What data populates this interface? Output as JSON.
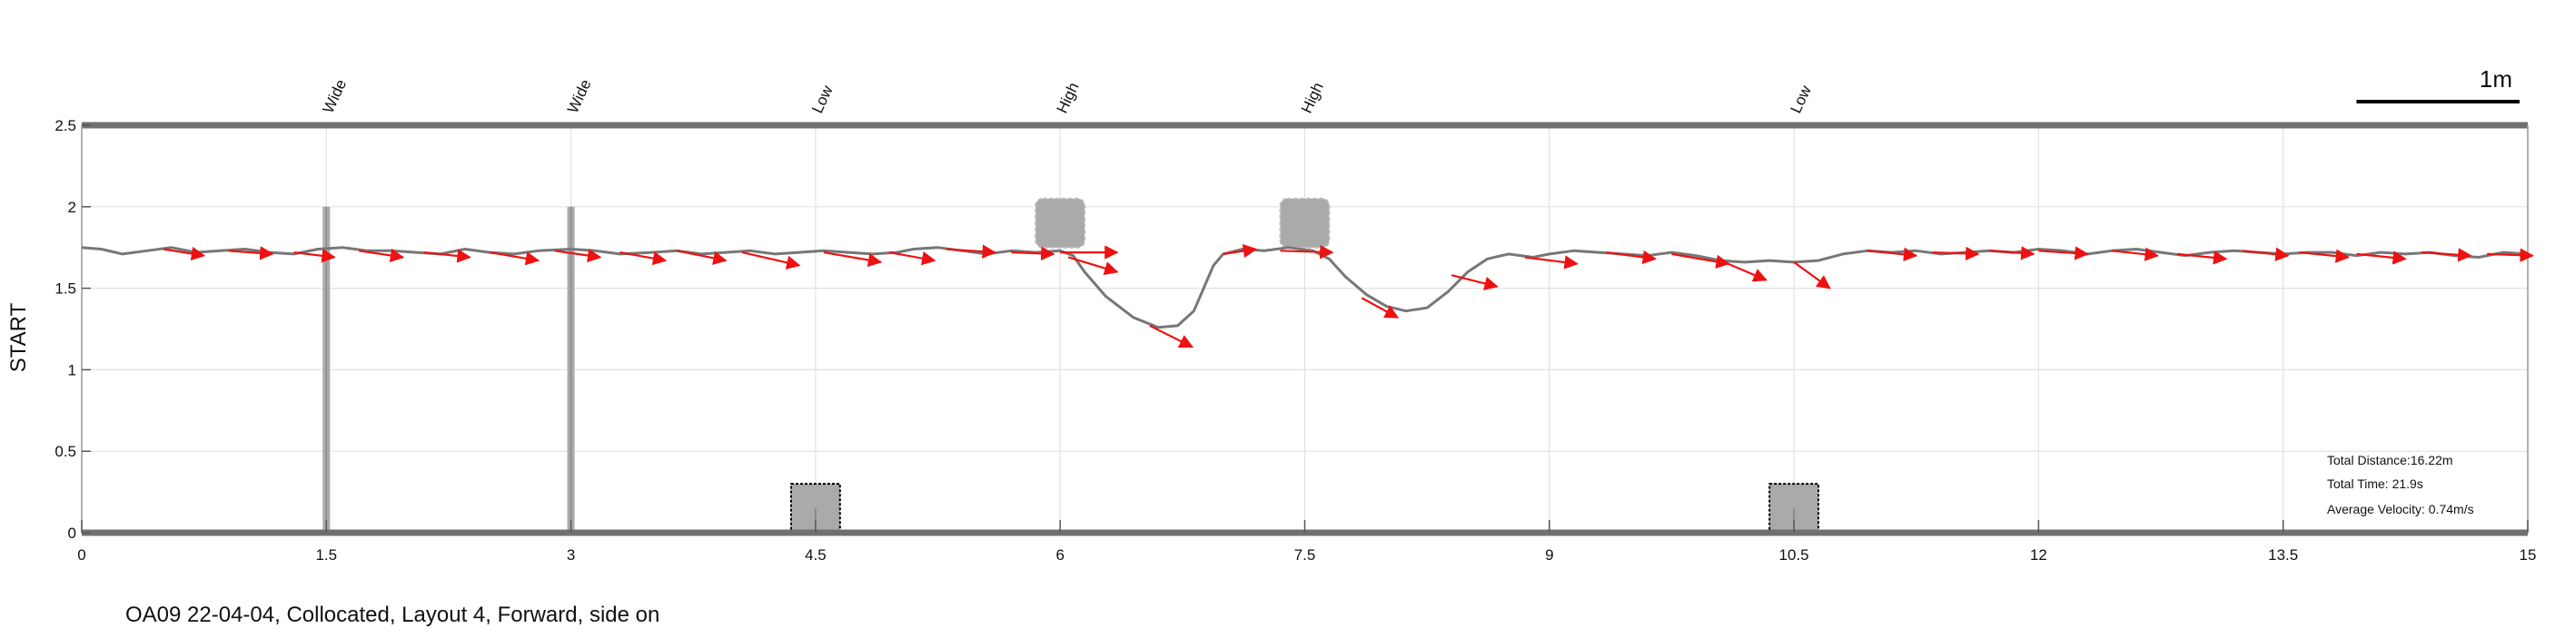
{
  "chart_data": {
    "type": "line",
    "ylabel": "START",
    "xlim": [
      0,
      15
    ],
    "ylim": [
      0,
      2.5
    ],
    "x_ticks": [
      "0",
      "1.5",
      "3",
      "4.5",
      "6",
      "7.5",
      "9",
      "10.5",
      "12",
      "13.5",
      "15"
    ],
    "y_ticks": [
      "0",
      "0.5",
      "1",
      "1.5",
      "2",
      "2.5"
    ],
    "grid": true,
    "scale_bar": {
      "label": "1m",
      "length": 1
    },
    "obstacles": [
      {
        "label": "Wide",
        "x": 1.5,
        "kind": "post",
        "y0": 0,
        "y1": 2.0
      },
      {
        "label": "Wide",
        "x": 3.0,
        "kind": "post",
        "y0": 0,
        "y1": 2.0
      },
      {
        "label": "Low",
        "x": 4.5,
        "kind": "box",
        "y0": 0,
        "y1": 0.3,
        "width": 0.3
      },
      {
        "label": "High",
        "x": 6.0,
        "kind": "cloud",
        "y0": 1.75,
        "y1": 2.05,
        "width": 0.3
      },
      {
        "label": "High",
        "x": 7.5,
        "kind": "cloud",
        "y0": 1.75,
        "y1": 2.05,
        "width": 0.3
      },
      {
        "label": "Low",
        "x": 10.5,
        "kind": "box",
        "y0": 0,
        "y1": 0.3,
        "width": 0.3
      }
    ],
    "path": [
      [
        0.0,
        1.75
      ],
      [
        0.12,
        1.74
      ],
      [
        0.25,
        1.71
      ],
      [
        0.4,
        1.73
      ],
      [
        0.55,
        1.75
      ],
      [
        0.7,
        1.72
      ],
      [
        0.85,
        1.73
      ],
      [
        1.0,
        1.74
      ],
      [
        1.15,
        1.72
      ],
      [
        1.3,
        1.71
      ],
      [
        1.45,
        1.74
      ],
      [
        1.6,
        1.75
      ],
      [
        1.75,
        1.73
      ],
      [
        1.9,
        1.73
      ],
      [
        2.05,
        1.72
      ],
      [
        2.2,
        1.71
      ],
      [
        2.35,
        1.74
      ],
      [
        2.5,
        1.72
      ],
      [
        2.65,
        1.71
      ],
      [
        2.8,
        1.73
      ],
      [
        3.0,
        1.74
      ],
      [
        3.15,
        1.73
      ],
      [
        3.3,
        1.71
      ],
      [
        3.5,
        1.72
      ],
      [
        3.65,
        1.73
      ],
      [
        3.8,
        1.71
      ],
      [
        3.95,
        1.72
      ],
      [
        4.1,
        1.73
      ],
      [
        4.25,
        1.71
      ],
      [
        4.4,
        1.72
      ],
      [
        4.55,
        1.73
      ],
      [
        4.7,
        1.72
      ],
      [
        4.85,
        1.71
      ],
      [
        5.0,
        1.72
      ],
      [
        5.1,
        1.74
      ],
      [
        5.25,
        1.75
      ],
      [
        5.4,
        1.73
      ],
      [
        5.55,
        1.71
      ],
      [
        5.7,
        1.73
      ],
      [
        5.85,
        1.72
      ],
      [
        6.0,
        1.73
      ],
      [
        6.08,
        1.7
      ],
      [
        6.15,
        1.6
      ],
      [
        6.28,
        1.45
      ],
      [
        6.45,
        1.32
      ],
      [
        6.6,
        1.26
      ],
      [
        6.72,
        1.27
      ],
      [
        6.82,
        1.36
      ],
      [
        6.88,
        1.5
      ],
      [
        6.94,
        1.64
      ],
      [
        7.0,
        1.71
      ],
      [
        7.12,
        1.74
      ],
      [
        7.25,
        1.73
      ],
      [
        7.4,
        1.75
      ],
      [
        7.55,
        1.73
      ],
      [
        7.65,
        1.68
      ],
      [
        7.75,
        1.57
      ],
      [
        7.88,
        1.46
      ],
      [
        8.0,
        1.39
      ],
      [
        8.12,
        1.36
      ],
      [
        8.25,
        1.38
      ],
      [
        8.38,
        1.48
      ],
      [
        8.5,
        1.6
      ],
      [
        8.62,
        1.68
      ],
      [
        8.75,
        1.71
      ],
      [
        8.9,
        1.69
      ],
      [
        9.0,
        1.71
      ],
      [
        9.15,
        1.73
      ],
      [
        9.3,
        1.72
      ],
      [
        9.45,
        1.71
      ],
      [
        9.6,
        1.7
      ],
      [
        9.75,
        1.72
      ],
      [
        9.9,
        1.7
      ],
      [
        10.05,
        1.67
      ],
      [
        10.2,
        1.66
      ],
      [
        10.35,
        1.67
      ],
      [
        10.5,
        1.66
      ],
      [
        10.65,
        1.67
      ],
      [
        10.8,
        1.71
      ],
      [
        10.95,
        1.73
      ],
      [
        11.1,
        1.72
      ],
      [
        11.25,
        1.73
      ],
      [
        11.4,
        1.71
      ],
      [
        11.55,
        1.72
      ],
      [
        11.7,
        1.73
      ],
      [
        11.85,
        1.72
      ],
      [
        12.0,
        1.74
      ],
      [
        12.15,
        1.73
      ],
      [
        12.3,
        1.71
      ],
      [
        12.45,
        1.73
      ],
      [
        12.6,
        1.74
      ],
      [
        12.75,
        1.72
      ],
      [
        12.9,
        1.7
      ],
      [
        13.05,
        1.72
      ],
      [
        13.2,
        1.73
      ],
      [
        13.35,
        1.72
      ],
      [
        13.5,
        1.71
      ],
      [
        13.65,
        1.72
      ],
      [
        13.8,
        1.72
      ],
      [
        13.95,
        1.7
      ],
      [
        14.1,
        1.72
      ],
      [
        14.25,
        1.71
      ],
      [
        14.4,
        1.72
      ],
      [
        14.55,
        1.7
      ],
      [
        14.7,
        1.69
      ],
      [
        14.85,
        1.72
      ],
      [
        15.0,
        1.71
      ]
    ],
    "velocity_arrows": [
      [
        0.5,
        1.74,
        0.25,
        -0.04
      ],
      [
        0.9,
        1.73,
        0.27,
        -0.02
      ],
      [
        1.3,
        1.72,
        0.25,
        -0.03
      ],
      [
        1.7,
        1.73,
        0.27,
        -0.04
      ],
      [
        2.1,
        1.72,
        0.28,
        -0.03
      ],
      [
        2.5,
        1.72,
        0.3,
        -0.05
      ],
      [
        2.9,
        1.73,
        0.28,
        -0.04
      ],
      [
        3.3,
        1.72,
        0.28,
        -0.05
      ],
      [
        3.65,
        1.73,
        0.3,
        -0.06
      ],
      [
        4.05,
        1.72,
        0.35,
        -0.08
      ],
      [
        4.55,
        1.72,
        0.35,
        -0.06
      ],
      [
        4.95,
        1.72,
        0.28,
        -0.05
      ],
      [
        5.3,
        1.74,
        0.3,
        -0.02
      ],
      [
        5.7,
        1.72,
        0.26,
        -0.01
      ],
      [
        6.0,
        1.72,
        0.35,
        0.0
      ],
      [
        6.05,
        1.69,
        0.3,
        -0.09
      ],
      [
        6.55,
        1.27,
        0.26,
        -0.13
      ],
      [
        7.0,
        1.71,
        0.2,
        0.03
      ],
      [
        7.35,
        1.73,
        0.32,
        -0.01
      ],
      [
        7.85,
        1.44,
        0.22,
        -0.12
      ],
      [
        8.4,
        1.58,
        0.28,
        -0.07
      ],
      [
        8.85,
        1.69,
        0.32,
        -0.04
      ],
      [
        9.35,
        1.72,
        0.3,
        -0.04
      ],
      [
        9.75,
        1.71,
        0.35,
        -0.06
      ],
      [
        10.05,
        1.67,
        0.28,
        -0.12
      ],
      [
        10.5,
        1.66,
        0.22,
        -0.16
      ],
      [
        10.95,
        1.73,
        0.3,
        -0.03
      ],
      [
        11.35,
        1.72,
        0.28,
        -0.01
      ],
      [
        11.7,
        1.73,
        0.27,
        -0.02
      ],
      [
        12.0,
        1.73,
        0.3,
        -0.02
      ],
      [
        12.45,
        1.73,
        0.28,
        -0.03
      ],
      [
        12.85,
        1.71,
        0.3,
        -0.03
      ],
      [
        13.25,
        1.73,
        0.28,
        -0.03
      ],
      [
        13.6,
        1.72,
        0.3,
        -0.03
      ],
      [
        13.95,
        1.71,
        0.3,
        -0.03
      ],
      [
        14.35,
        1.72,
        0.3,
        -0.02
      ],
      [
        14.75,
        1.71,
        0.28,
        -0.01
      ]
    ],
    "annotations": {
      "total_distance": "Total Distance:16.22m",
      "total_time": "Total Time: 21.9s",
      "average_velocity": "Average Velocity: 0.74m/s"
    }
  },
  "caption": "OA09 22-04-04, Collocated, Layout 4, Forward, side on",
  "colors": {
    "path": "#777777",
    "arrow": "#ee1111",
    "obstacle": "#aaaaaa",
    "axis_bar": "#707070",
    "grid": "#e2e2e2"
  }
}
